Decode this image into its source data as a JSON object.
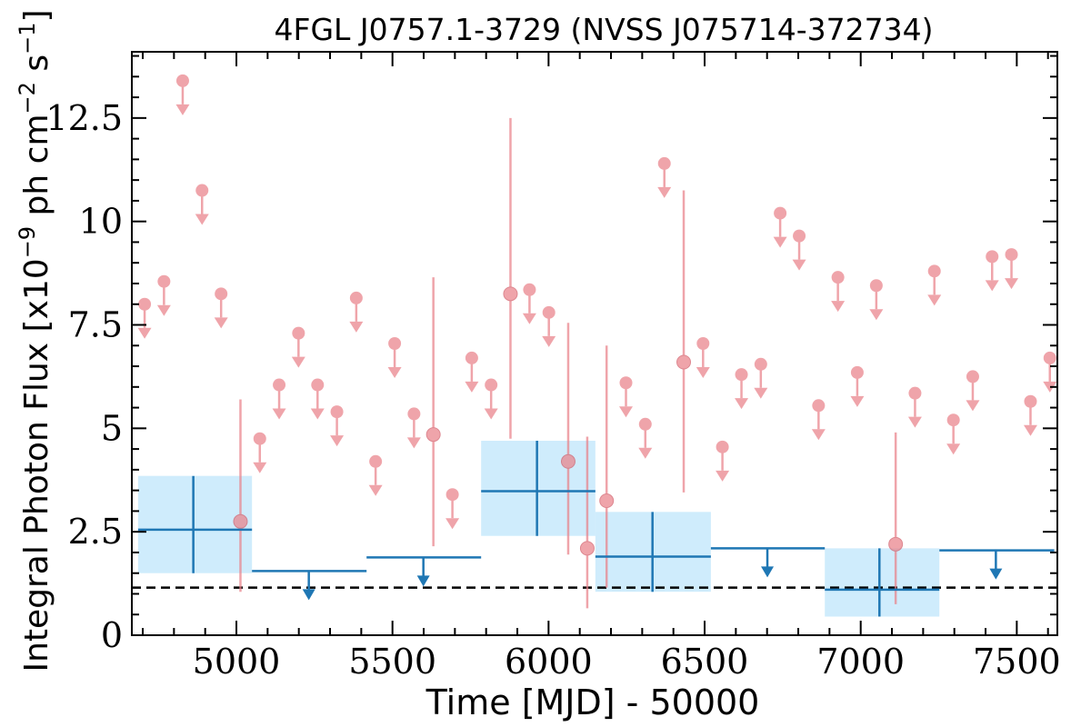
{
  "chart_data": {
    "type": "scatter",
    "title": "4FGL J0757.1-3729 (NVSS J075714-372734)",
    "xlabel": "Time [MJD] - 50000",
    "ylabel": {
      "main": "Integral Photon Flux [x10",
      "exp1": "−9",
      "mid": " ph cm",
      "exp2": "−2",
      "mid2": " s",
      "exp3": "−1",
      "end": "]"
    },
    "xlim": [
      4665,
      7630
    ],
    "ylim": [
      0,
      14.1
    ],
    "x_ticks": [
      5000,
      5500,
      6000,
      6500,
      7000,
      7500
    ],
    "y_ticks": [
      0,
      2.5,
      5,
      7.5,
      10,
      12.5
    ],
    "y_tick_labels": [
      "0",
      "2.5",
      "5",
      "7.5",
      "10",
      "12.5"
    ],
    "colors": {
      "short_bins": "#e9828a",
      "long_bins": "#1f77b4",
      "long_bins_fill": "#bfe6fb",
      "average_line": "#000000"
    },
    "average_flux": 1.15,
    "short_bins_upper_limits": [
      {
        "x": 4706,
        "y": 8.0
      },
      {
        "x": 4768,
        "y": 8.55
      },
      {
        "x": 4828,
        "y": 13.4
      },
      {
        "x": 4890,
        "y": 10.75
      },
      {
        "x": 4951,
        "y": 8.25
      },
      {
        "x": 5075,
        "y": 4.75
      },
      {
        "x": 5137,
        "y": 6.05
      },
      {
        "x": 5199,
        "y": 7.3
      },
      {
        "x": 5260,
        "y": 6.05
      },
      {
        "x": 5322,
        "y": 5.4
      },
      {
        "x": 5384,
        "y": 8.15
      },
      {
        "x": 5446,
        "y": 4.2
      },
      {
        "x": 5507,
        "y": 7.05
      },
      {
        "x": 5569,
        "y": 5.35
      },
      {
        "x": 5692,
        "y": 3.4
      },
      {
        "x": 5754,
        "y": 6.7
      },
      {
        "x": 5816,
        "y": 6.05
      },
      {
        "x": 5939,
        "y": 8.35
      },
      {
        "x": 6001,
        "y": 7.8
      },
      {
        "x": 6248,
        "y": 6.1
      },
      {
        "x": 6310,
        "y": 5.1
      },
      {
        "x": 6371,
        "y": 11.4
      },
      {
        "x": 6495,
        "y": 7.05
      },
      {
        "x": 6557,
        "y": 4.55
      },
      {
        "x": 6618,
        "y": 6.3
      },
      {
        "x": 6680,
        "y": 6.55
      },
      {
        "x": 6742,
        "y": 10.2
      },
      {
        "x": 6803,
        "y": 9.65
      },
      {
        "x": 6865,
        "y": 5.55
      },
      {
        "x": 6927,
        "y": 8.65
      },
      {
        "x": 6989,
        "y": 6.35
      },
      {
        "x": 7050,
        "y": 8.45
      },
      {
        "x": 7174,
        "y": 5.85
      },
      {
        "x": 7236,
        "y": 8.8
      },
      {
        "x": 7297,
        "y": 5.2
      },
      {
        "x": 7359,
        "y": 6.25
      },
      {
        "x": 7421,
        "y": 9.15
      },
      {
        "x": 7483,
        "y": 9.2
      },
      {
        "x": 7544,
        "y": 5.65
      },
      {
        "x": 7606,
        "y": 6.7
      }
    ],
    "short_bins_detections": [
      {
        "x": 5013,
        "y": 2.75,
        "ylo": 1.05,
        "yhi": 5.7
      },
      {
        "x": 5631,
        "y": 4.85,
        "ylo": 2.15,
        "yhi": 8.65
      },
      {
        "x": 5878,
        "y": 8.25,
        "ylo": 4.75,
        "yhi": 12.5
      },
      {
        "x": 6063,
        "y": 4.2,
        "ylo": 1.95,
        "yhi": 7.55
      },
      {
        "x": 6124,
        "y": 2.1,
        "ylo": 0.65,
        "yhi": 4.8
      },
      {
        "x": 6186,
        "y": 3.25,
        "ylo": 1.15,
        "yhi": 7.0
      },
      {
        "x": 6433,
        "y": 6.6,
        "ylo": 3.45,
        "yhi": 10.75
      },
      {
        "x": 7112,
        "y": 2.2,
        "ylo": 0.75,
        "yhi": 4.9
      }
    ],
    "long_bins_detections": [
      {
        "x": 4862,
        "xlo": 4685,
        "xhi": 5050,
        "y": 2.55,
        "ylo": 1.5,
        "yhi": 3.85
      },
      {
        "x": 5963,
        "xlo": 5784,
        "xhi": 6150,
        "y": 3.48,
        "ylo": 2.4,
        "yhi": 4.7
      },
      {
        "x": 6333,
        "xlo": 6150,
        "xhi": 6520,
        "y": 1.9,
        "ylo": 1.05,
        "yhi": 2.98
      },
      {
        "x": 7060,
        "xlo": 6885,
        "xhi": 7252,
        "y": 1.1,
        "ylo": 0.45,
        "yhi": 2.1
      }
    ],
    "long_bins_upper_limits": [
      {
        "x": 5232,
        "xlo": 5050,
        "xhi": 5417,
        "y": 1.55
      },
      {
        "x": 5599,
        "xlo": 5417,
        "xhi": 5784,
        "y": 1.88
      },
      {
        "x": 6701,
        "xlo": 6520,
        "xhi": 6885,
        "y": 2.1
      },
      {
        "x": 7433,
        "xlo": 7252,
        "xhi": 7620,
        "y": 2.05
      }
    ]
  }
}
